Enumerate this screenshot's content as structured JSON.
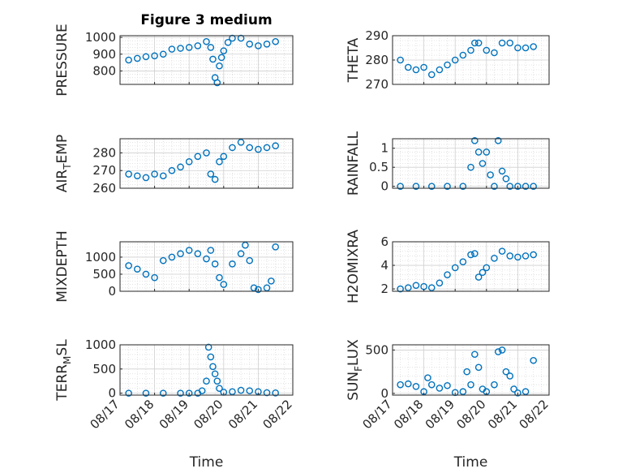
{
  "figure_title": "Figure 3 medium",
  "marker_color": "#0072BD",
  "chart_data": [
    {
      "type": "scatter",
      "title": "Figure 3 medium",
      "ylabel": "PRESSURE",
      "ylabel_sub": "",
      "ylabel_rest": "",
      "xlim": [
        "08/17 00:00",
        "08/22 00:00"
      ],
      "ylim": [
        720,
        1010
      ],
      "yticks": [
        800,
        900,
        1000
      ],
      "xticks": [
        "08/17",
        "08/18",
        "08/19",
        "08/20",
        "08/21",
        "08/22"
      ],
      "xtick_labels_shown": false,
      "grid": true,
      "series": [
        {
          "x": [
            "08/17 06:00",
            "08/17 12:00",
            "08/17 18:00",
            "08/18 00:00",
            "08/18 06:00",
            "08/18 12:00",
            "08/18 18:00",
            "08/19 00:00",
            "08/19 06:00",
            "08/19 12:00",
            "08/19 15:00",
            "08/19 16:30",
            "08/19 18:00",
            "08/19 19:30",
            "08/19 21:00",
            "08/19 22:30",
            "08/20 00:00",
            "08/20 03:00",
            "08/20 06:00",
            "08/20 12:00",
            "08/20 18:00",
            "08/21 00:00",
            "08/21 06:00",
            "08/21 12:00"
          ],
          "y": [
            865,
            875,
            885,
            890,
            900,
            930,
            935,
            940,
            950,
            975,
            940,
            870,
            760,
            730,
            830,
            880,
            920,
            970,
            995,
            995,
            960,
            950,
            960,
            975
          ]
        }
      ]
    },
    {
      "type": "scatter",
      "ylabel": "THETA",
      "ylabel_sub": "",
      "ylabel_rest": "",
      "xlim": [
        "08/17 00:00",
        "08/22 00:00"
      ],
      "ylim": [
        270,
        290
      ],
      "yticks": [
        270,
        280,
        290
      ],
      "xticks": [
        "08/17",
        "08/18",
        "08/19",
        "08/20",
        "08/21",
        "08/22"
      ],
      "xtick_labels_shown": false,
      "grid": true,
      "series": [
        {
          "x": [
            "08/17 06:00",
            "08/17 12:00",
            "08/17 18:00",
            "08/18 00:00",
            "08/18 06:00",
            "08/18 12:00",
            "08/18 18:00",
            "08/19 00:00",
            "08/19 06:00",
            "08/19 12:00",
            "08/19 15:00",
            "08/19 18:00",
            "08/20 00:00",
            "08/20 06:00",
            "08/20 12:00",
            "08/20 18:00",
            "08/21 00:00",
            "08/21 06:00",
            "08/21 12:00"
          ],
          "y": [
            280,
            277,
            276,
            277,
            274,
            276,
            278,
            280,
            282,
            284,
            287,
            287,
            284,
            283,
            287,
            287,
            285,
            285,
            285.5
          ]
        }
      ]
    },
    {
      "type": "scatter",
      "ylabel": "AIR",
      "ylabel_sub": "T",
      "ylabel_rest": "EMP",
      "xlim": [
        "08/17 00:00",
        "08/22 00:00"
      ],
      "ylim": [
        260,
        288
      ],
      "yticks": [
        260,
        270,
        280
      ],
      "xticks": [
        "08/17",
        "08/18",
        "08/19",
        "08/20",
        "08/21",
        "08/22"
      ],
      "xtick_labels_shown": false,
      "grid": true,
      "series": [
        {
          "x": [
            "08/17 06:00",
            "08/17 12:00",
            "08/17 18:00",
            "08/18 00:00",
            "08/18 06:00",
            "08/18 12:00",
            "08/18 18:00",
            "08/19 00:00",
            "08/19 06:00",
            "08/19 12:00",
            "08/19 15:00",
            "08/19 18:00",
            "08/19 21:00",
            "08/20 00:00",
            "08/20 06:00",
            "08/20 12:00",
            "08/20 18:00",
            "08/21 00:00",
            "08/21 06:00",
            "08/21 12:00"
          ],
          "y": [
            268,
            267,
            266,
            268,
            267,
            270,
            272,
            275,
            278,
            280,
            268,
            265,
            275,
            278,
            283,
            286,
            283,
            282,
            283,
            284
          ]
        }
      ]
    },
    {
      "type": "scatter",
      "ylabel": "RAINFALL",
      "ylabel_sub": "",
      "ylabel_rest": "",
      "xlim": [
        "08/17 00:00",
        "08/22 00:00"
      ],
      "ylim": [
        -0.05,
        1.25
      ],
      "yticks": [
        0,
        0.5,
        1
      ],
      "xticks": [
        "08/17",
        "08/18",
        "08/19",
        "08/20",
        "08/21",
        "08/22"
      ],
      "xtick_labels_shown": false,
      "grid": true,
      "series": [
        {
          "x": [
            "08/17 06:00",
            "08/17 18:00",
            "08/18 06:00",
            "08/18 18:00",
            "08/19 06:00",
            "08/19 12:00",
            "08/19 15:00",
            "08/19 18:00",
            "08/19 21:00",
            "08/20 00:00",
            "08/20 03:00",
            "08/20 06:00",
            "08/20 09:00",
            "08/20 12:00",
            "08/20 15:00",
            "08/20 18:00",
            "08/21 00:00",
            "08/21 06:00",
            "08/21 12:00"
          ],
          "y": [
            0,
            0,
            0,
            0,
            0,
            0.5,
            1.2,
            0.9,
            0.6,
            0.9,
            0.3,
            0,
            1.2,
            0.4,
            0.2,
            0,
            0,
            0,
            0
          ]
        }
      ]
    },
    {
      "type": "scatter",
      "ylabel": "MIXDEPTH",
      "ylabel_sub": "",
      "ylabel_rest": "",
      "xlim": [
        "08/17 00:00",
        "08/22 00:00"
      ],
      "ylim": [
        0,
        1450
      ],
      "yticks": [
        0,
        500,
        1000
      ],
      "xticks": [
        "08/17",
        "08/18",
        "08/19",
        "08/20",
        "08/21",
        "08/22"
      ],
      "xtick_labels_shown": false,
      "grid": true,
      "series": [
        {
          "x": [
            "08/17 06:00",
            "08/17 12:00",
            "08/17 18:00",
            "08/18 00:00",
            "08/18 06:00",
            "08/18 12:00",
            "08/18 18:00",
            "08/19 00:00",
            "08/19 06:00",
            "08/19 12:00",
            "08/19 15:00",
            "08/19 18:00",
            "08/19 21:00",
            "08/20 00:00",
            "08/20 06:00",
            "08/20 12:00",
            "08/20 15:00",
            "08/20 18:00",
            "08/20 21:00",
            "08/21 00:00",
            "08/21 06:00",
            "08/21 09:00",
            "08/21 12:00"
          ],
          "y": [
            750,
            650,
            500,
            400,
            900,
            1000,
            1100,
            1200,
            1100,
            950,
            1200,
            800,
            400,
            200,
            800,
            1100,
            1350,
            900,
            100,
            50,
            100,
            300,
            1300
          ]
        }
      ]
    },
    {
      "type": "scatter",
      "ylabel": "H2OMIXRA",
      "ylabel_sub": "",
      "ylabel_rest": "",
      "xlim": [
        "08/17 00:00",
        "08/22 00:00"
      ],
      "ylim": [
        1.8,
        6
      ],
      "yticks": [
        2,
        4,
        6
      ],
      "xticks": [
        "08/17",
        "08/18",
        "08/19",
        "08/20",
        "08/21",
        "08/22"
      ],
      "xtick_labels_shown": false,
      "grid": true,
      "series": [
        {
          "x": [
            "08/17 06:00",
            "08/17 12:00",
            "08/17 18:00",
            "08/18 00:00",
            "08/18 06:00",
            "08/18 12:00",
            "08/18 18:00",
            "08/19 00:00",
            "08/19 06:00",
            "08/19 12:00",
            "08/19 15:00",
            "08/19 18:00",
            "08/19 21:00",
            "08/20 00:00",
            "08/20 06:00",
            "08/20 12:00",
            "08/20 18:00",
            "08/21 00:00",
            "08/21 06:00",
            "08/21 12:00"
          ],
          "y": [
            2,
            2.1,
            2.3,
            2.2,
            2.1,
            2.5,
            3.2,
            3.8,
            4.3,
            4.9,
            5,
            3,
            3.4,
            3.8,
            4.6,
            5.2,
            4.8,
            4.7,
            4.8,
            4.9
          ]
        }
      ]
    },
    {
      "type": "scatter",
      "ylabel": "TERR",
      "ylabel_sub": "M",
      "ylabel_rest": "SL",
      "xlim": [
        "08/17 00:00",
        "08/22 00:00"
      ],
      "ylim": [
        -40,
        1000
      ],
      "yticks": [
        0,
        500,
        1000
      ],
      "xticks": [
        "08/17",
        "08/18",
        "08/19",
        "08/20",
        "08/21",
        "08/22"
      ],
      "xtick_labels_shown": true,
      "xlabel": "Time",
      "grid": true,
      "series": [
        {
          "x": [
            "08/17 06:00",
            "08/17 18:00",
            "08/18 06:00",
            "08/18 18:00",
            "08/19 00:00",
            "08/19 06:00",
            "08/19 09:00",
            "08/19 12:00",
            "08/19 13:30",
            "08/19 15:00",
            "08/19 16:30",
            "08/19 18:00",
            "08/19 19:30",
            "08/19 21:00",
            "08/20 00:00",
            "08/20 06:00",
            "08/20 12:00",
            "08/20 18:00",
            "08/21 00:00",
            "08/21 06:00",
            "08/21 12:00"
          ],
          "y": [
            0,
            0,
            0,
            0,
            0,
            0,
            50,
            250,
            950,
            750,
            550,
            400,
            250,
            100,
            20,
            30,
            60,
            50,
            30,
            10,
            5
          ]
        }
      ]
    },
    {
      "type": "scatter",
      "ylabel": "SUN",
      "ylabel_sub": "F",
      "ylabel_rest": "LUX",
      "xlim": [
        "08/17 00:00",
        "08/22 00:00"
      ],
      "ylim": [
        -20,
        560
      ],
      "yticks": [
        0,
        500
      ],
      "xticks": [
        "08/17",
        "08/18",
        "08/19",
        "08/20",
        "08/21",
        "08/22"
      ],
      "xtick_labels_shown": true,
      "xlabel": "Time",
      "grid": true,
      "series": [
        {
          "x": [
            "08/17 06:00",
            "08/17 12:00",
            "08/17 18:00",
            "08/18 00:00",
            "08/18 03:00",
            "08/18 06:00",
            "08/18 12:00",
            "08/18 18:00",
            "08/19 00:00",
            "08/19 06:00",
            "08/19 09:00",
            "08/19 12:00",
            "08/19 15:00",
            "08/19 18:00",
            "08/19 21:00",
            "08/20 00:00",
            "08/20 06:00",
            "08/20 09:00",
            "08/20 12:00",
            "08/20 15:00",
            "08/20 18:00",
            "08/20 21:00",
            "08/21 00:00",
            "08/21 06:00",
            "08/21 12:00"
          ],
          "y": [
            100,
            110,
            80,
            20,
            180,
            100,
            60,
            90,
            10,
            20,
            250,
            100,
            450,
            300,
            50,
            20,
            100,
            480,
            500,
            250,
            200,
            50,
            5,
            20,
            380
          ]
        }
      ]
    }
  ]
}
